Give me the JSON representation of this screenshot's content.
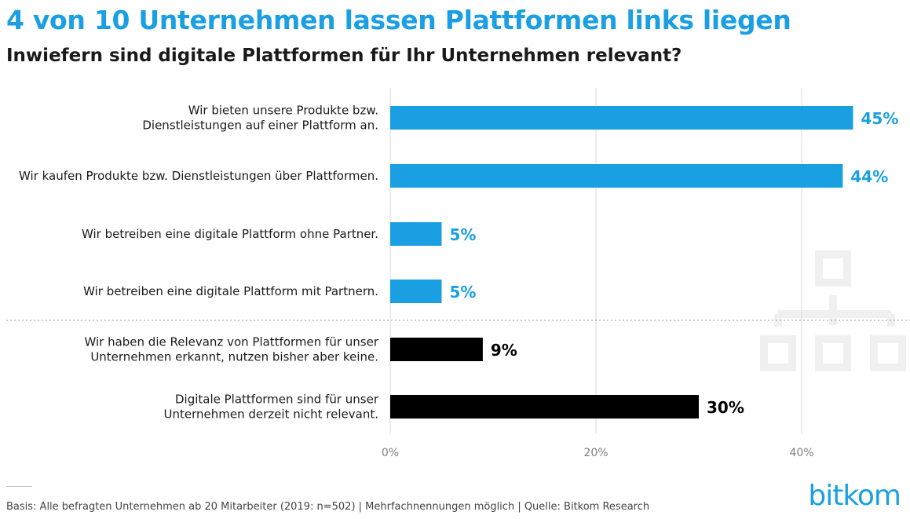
{
  "title": "4 von 10 Unternehmen lassen Plattformen links liegen",
  "subtitle": "Inwiefern sind digitale Plattformen für Ihr Unternehmen relevant?",
  "footer": "Basis: Alle befragten Unternehmen ab 20 Mitarbeiter (2019: n=502) | Mehrfachnennungen möglich | Quelle: Bitkom Research",
  "logo": "bitkom",
  "colors": {
    "blue": "#1aa0e2",
    "black": "#000000",
    "grid": "#d9d9d9",
    "axis_text": "#7f7f7f"
  },
  "chart_data": {
    "type": "bar",
    "orientation": "horizontal",
    "title": "4 von 10 Unternehmen lassen Plattformen links liegen",
    "subtitle": "Inwiefern sind digitale Plattformen für Ihr Unternehmen relevant?",
    "xlim": [
      0,
      45
    ],
    "xticks": [
      0,
      20,
      40
    ],
    "xtick_labels": [
      "0%",
      "20%",
      "40%"
    ],
    "grid": true,
    "categories": [
      [
        "Wir bieten unsere Produkte bzw.",
        "Dienstleistungen auf einer Plattform an."
      ],
      [
        "Wir kaufen Produkte bzw. Dienstleistungen über Plattformen."
      ],
      [
        "Wir betreiben eine digitale Plattform ohne Partner."
      ],
      [
        "Wir betreiben eine digitale Plattform mit Partnern."
      ],
      [
        "Wir haben die Relevanz von Plattformen für unser",
        "Unternehmen erkannt, nutzen bisher aber keine."
      ],
      [
        "Digitale Plattformen sind für unser",
        "Unternehmen derzeit nicht relevant."
      ]
    ],
    "values": [
      45,
      44,
      5,
      5,
      9,
      30
    ],
    "value_labels": [
      "45%",
      "44%",
      "5%",
      "5%",
      "9%",
      "30%"
    ],
    "groups": [
      "blue",
      "blue",
      "blue",
      "blue",
      "black",
      "black"
    ]
  }
}
